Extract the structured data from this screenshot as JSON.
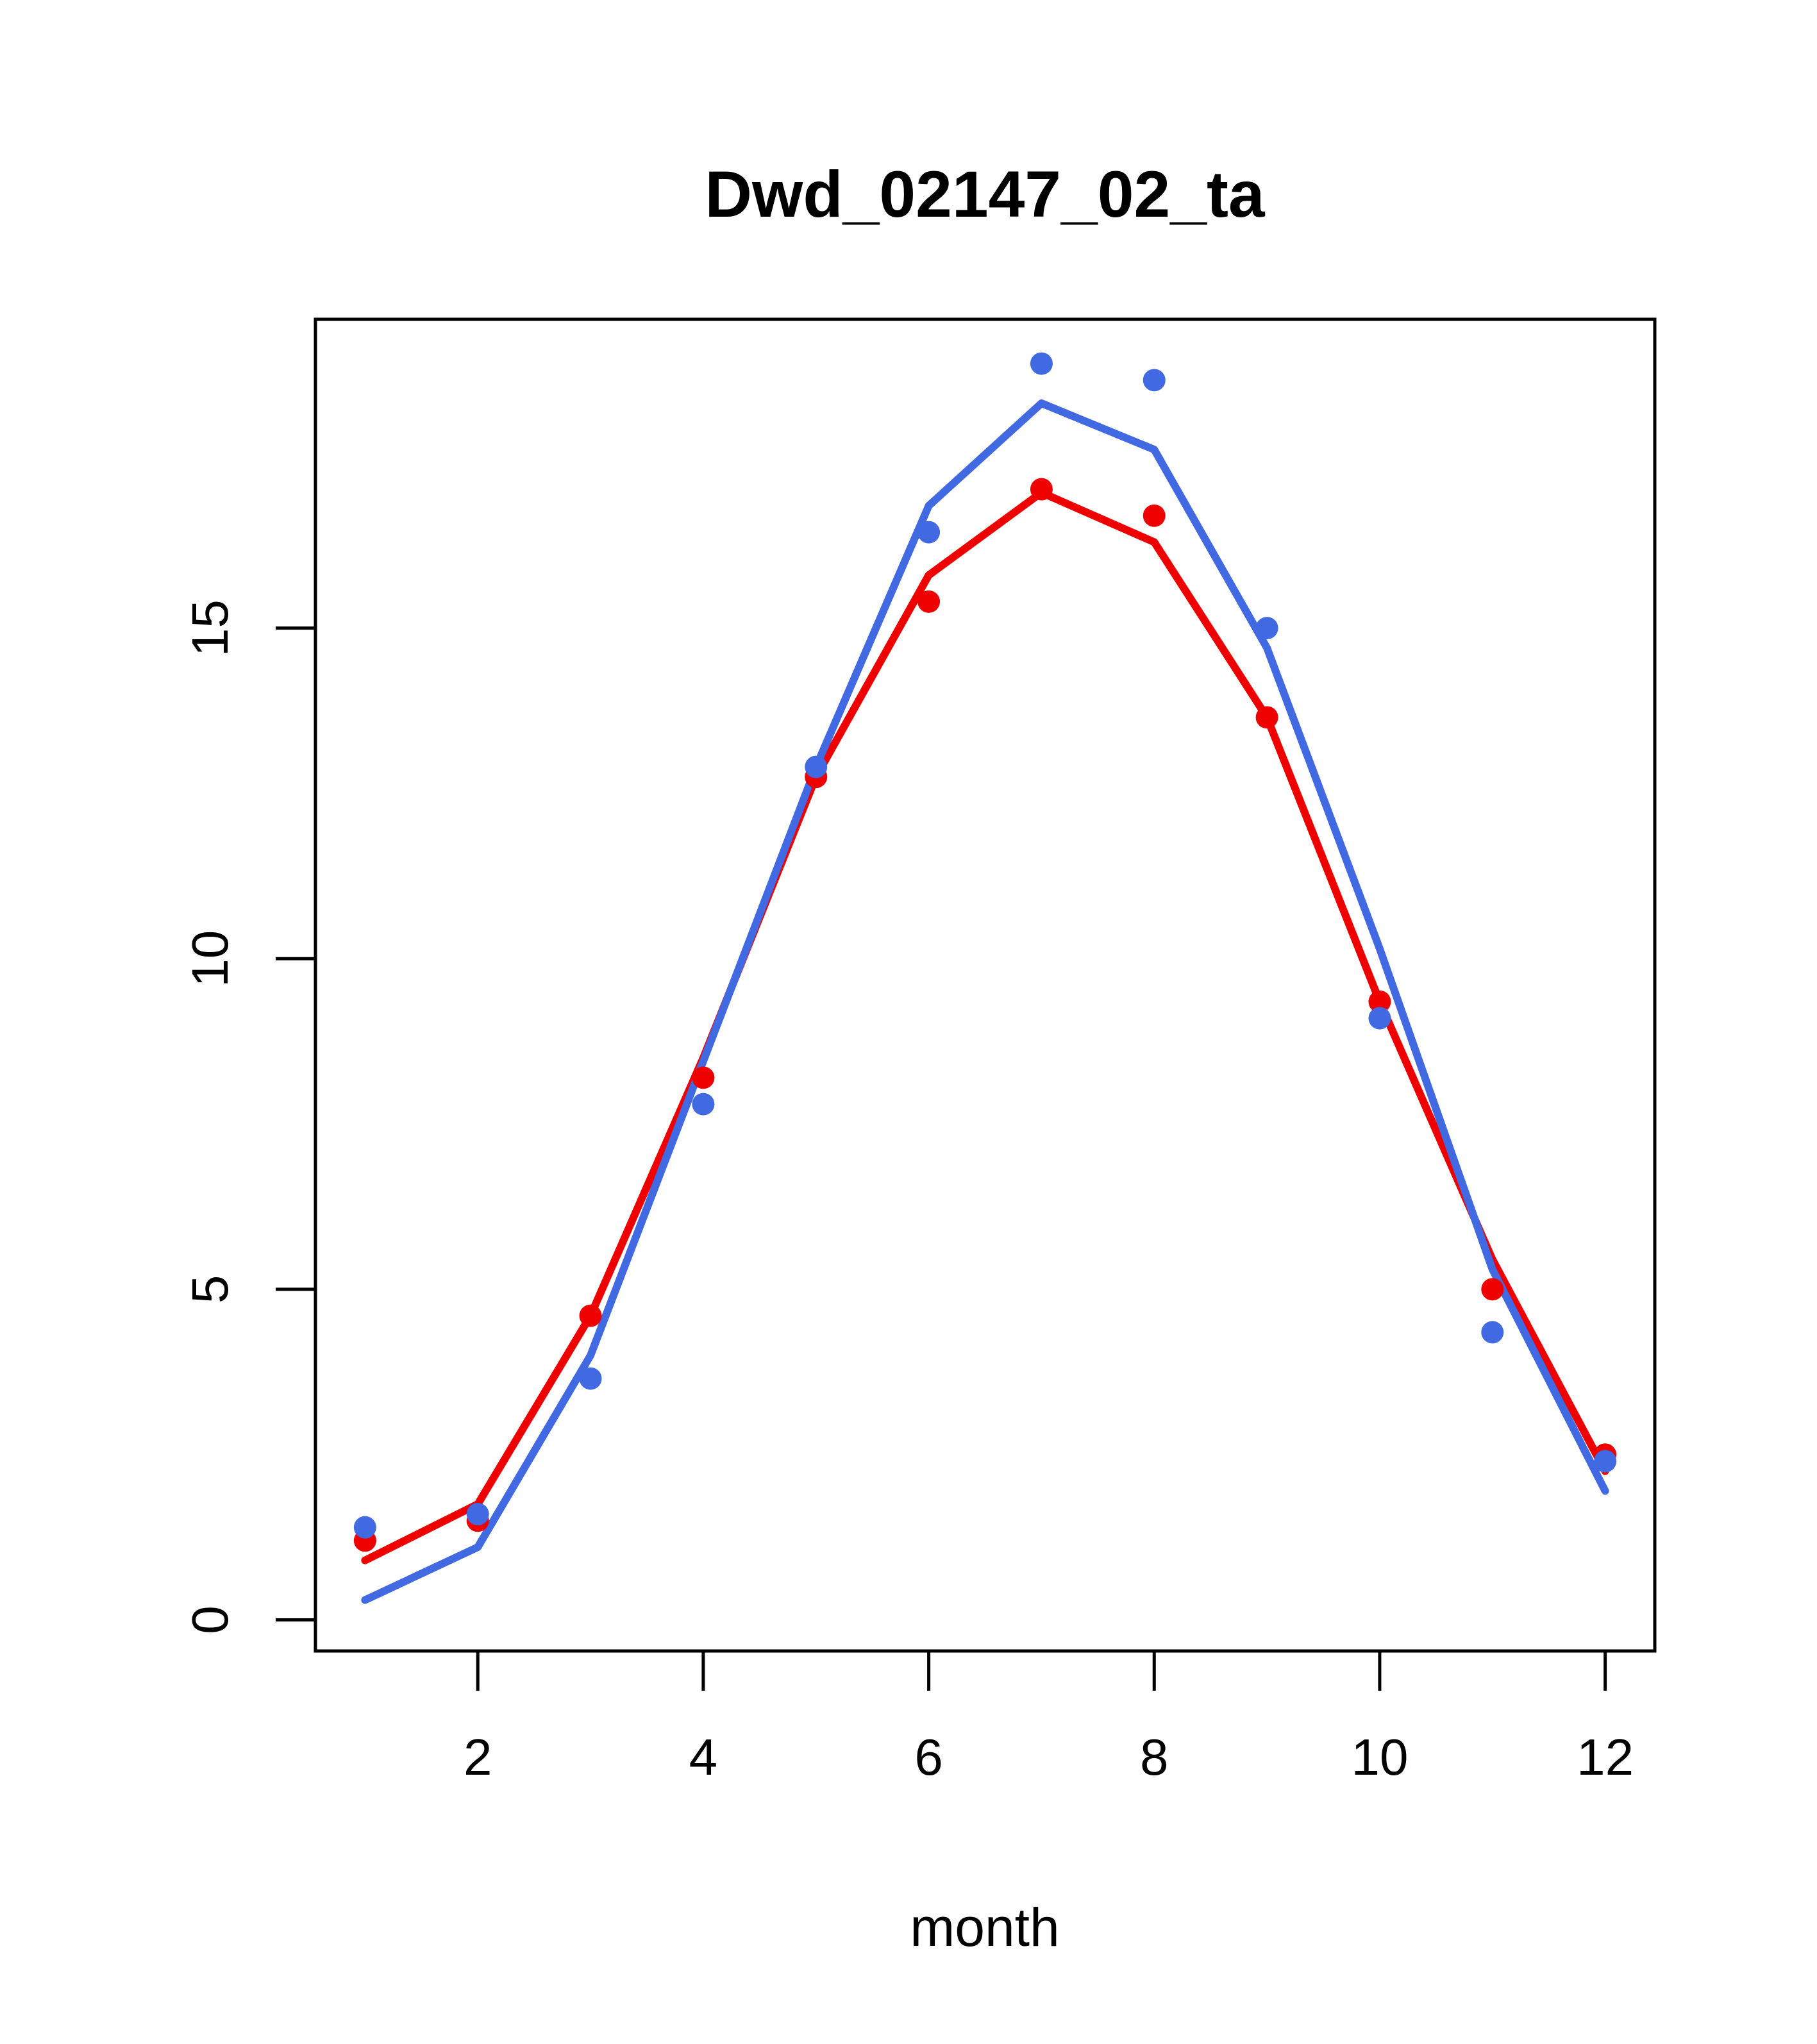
{
  "title": "Dwd_02147_02_ta",
  "chart_data": {
    "type": "line",
    "title": "Dwd_02147_02_ta",
    "xlabel": "month",
    "ylabel": "",
    "x": [
      1,
      2,
      3,
      4,
      5,
      6,
      7,
      8,
      9,
      10,
      11,
      12
    ],
    "xticks": [
      2,
      4,
      6,
      8,
      10,
      12
    ],
    "yticks": [
      0,
      5,
      10,
      15
    ],
    "xlim": [
      0.56,
      12.44
    ],
    "ylim": [
      -0.47,
      19.67
    ],
    "grid": false,
    "legend_position": "none",
    "colors": {
      "blue": "#4169E1",
      "red": "#EE0000"
    },
    "series": [
      {
        "name": "red-fit-line",
        "role": "line",
        "color": "#EE0000",
        "values": [
          0.9,
          1.75,
          4.6,
          8.5,
          12.75,
          15.8,
          17.05,
          16.3,
          13.65,
          9.35,
          5.45,
          2.25
        ]
      },
      {
        "name": "blue-fit-line",
        "role": "line",
        "color": "#4169E1",
        "values": [
          0.3,
          1.1,
          4.0,
          8.45,
          12.9,
          16.85,
          18.4,
          17.7,
          14.7,
          10.15,
          5.3,
          1.95
        ]
      },
      {
        "name": "red-points",
        "role": "points",
        "color": "#EE0000",
        "values": [
          1.2,
          1.5,
          4.6,
          8.2,
          12.75,
          15.4,
          17.1,
          16.7,
          13.65,
          9.35,
          5.0,
          2.5
        ]
      },
      {
        "name": "blue-points",
        "role": "points",
        "color": "#4169E1",
        "values": [
          1.4,
          1.6,
          3.65,
          7.8,
          12.9,
          16.45,
          19.0,
          18.75,
          15.0,
          9.1,
          4.35,
          2.4
        ]
      }
    ]
  }
}
